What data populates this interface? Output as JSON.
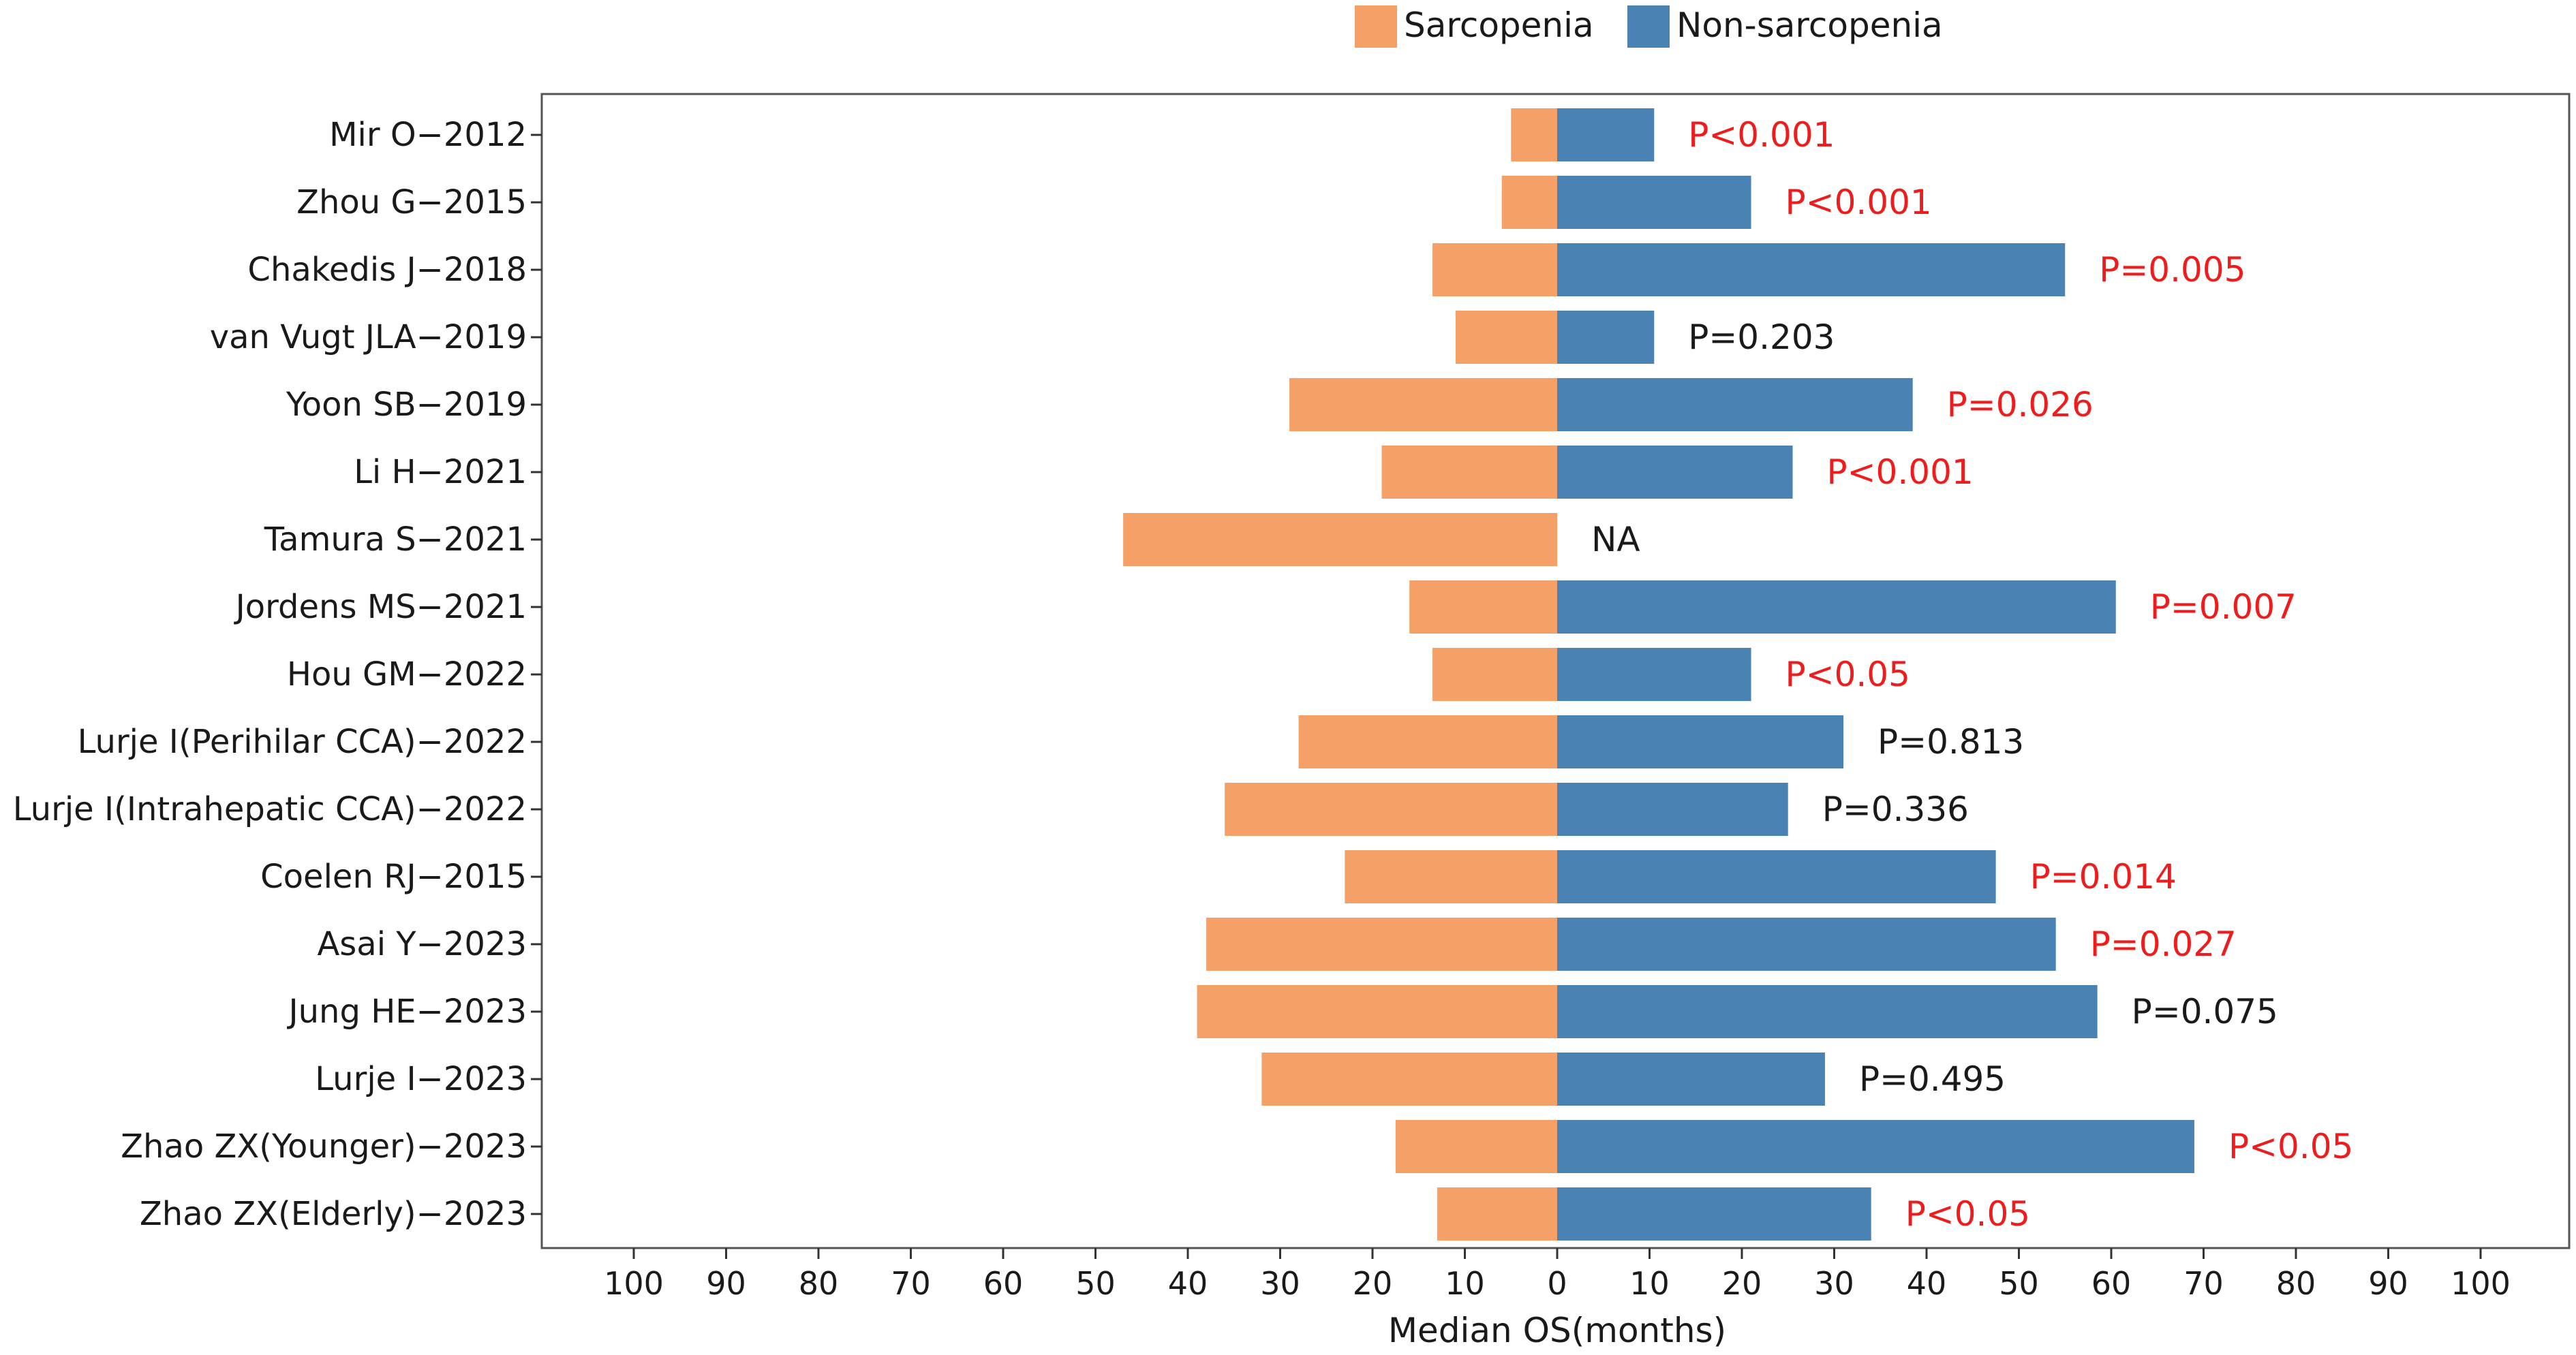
{
  "chart_data": {
    "type": "bar",
    "orientation": "horizontal-diverging",
    "xlabel": "Median OS(months)",
    "xlim": [
      -100,
      100
    ],
    "xticks": [
      -100,
      -90,
      -80,
      -70,
      -60,
      -50,
      -40,
      -30,
      -20,
      -10,
      0,
      10,
      20,
      30,
      40,
      50,
      60,
      70,
      80,
      90,
      100
    ],
    "xtick_labels": [
      "100",
      "90",
      "80",
      "70",
      "60",
      "50",
      "40",
      "30",
      "20",
      "10",
      "0",
      "10",
      "20",
      "30",
      "40",
      "50",
      "60",
      "70",
      "80",
      "90",
      "100"
    ],
    "legend": {
      "position": "top-center",
      "items": [
        {
          "name": "Sarcopenia",
          "color": "#F5A067"
        },
        {
          "name": "Non-sarcopenia",
          "color": "#4A82B4"
        }
      ]
    },
    "categories": [
      "Mir O−2012",
      "Zhou G−2015",
      "Chakedis J−2018",
      "van Vugt JLA−2019",
      "Yoon SB−2019",
      "Li H−2021",
      "Tamura S−2021",
      "Jordens MS−2021",
      "Hou GM−2022",
      "Lurje I(Perihilar CCA)−2022",
      "Lurje I(Intrahepatic CCA)−2022",
      "Coelen RJ−2015",
      "Asai Y−2023",
      "Jung HE−2023",
      "Lurje I−2023",
      "Zhao ZX(Younger)−2023",
      "Zhao ZX(Elderly)−2023"
    ],
    "series": [
      {
        "name": "Sarcopenia",
        "color": "#F5A067",
        "values": [
          5,
          6,
          13.5,
          11,
          29,
          19,
          47,
          16,
          13.5,
          28,
          36,
          23,
          38,
          39,
          32,
          17.5,
          13
        ]
      },
      {
        "name": "Non-sarcopenia",
        "color": "#4A82B4",
        "values": [
          10.5,
          21,
          55,
          10.5,
          38.5,
          25.5,
          null,
          60.5,
          21,
          31,
          25,
          47.5,
          54,
          58.5,
          29,
          69,
          34
        ]
      }
    ],
    "annotations": [
      {
        "text": "P<0.001",
        "significant": true
      },
      {
        "text": "P<0.001",
        "significant": true
      },
      {
        "text": "P=0.005",
        "significant": true
      },
      {
        "text": "P=0.203",
        "significant": false
      },
      {
        "text": "P=0.026",
        "significant": true
      },
      {
        "text": "P<0.001",
        "significant": true
      },
      {
        "text": "NA",
        "significant": false
      },
      {
        "text": "P=0.007",
        "significant": true
      },
      {
        "text": "P<0.05",
        "significant": true
      },
      {
        "text": "P=0.813",
        "significant": false
      },
      {
        "text": "P=0.336",
        "significant": false
      },
      {
        "text": "P=0.014",
        "significant": true
      },
      {
        "text": "P=0.027",
        "significant": true
      },
      {
        "text": "P=0.075",
        "significant": false
      },
      {
        "text": "P=0.495",
        "significant": false
      },
      {
        "text": "P<0.05",
        "significant": true
      },
      {
        "text": "P<0.05",
        "significant": true
      }
    ],
    "annotation_colors": {
      "significant": "#EE1C1C",
      "non_significant": "#1a1a1a"
    }
  }
}
